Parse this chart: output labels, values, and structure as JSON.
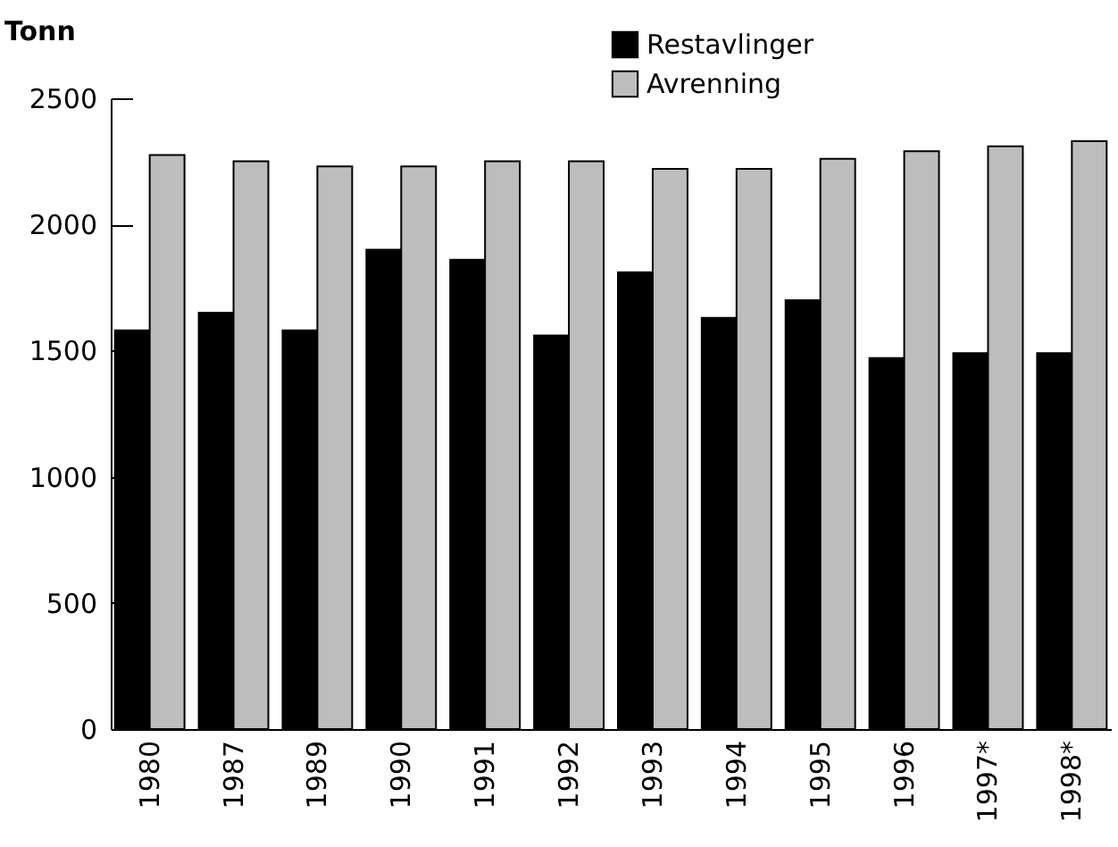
{
  "chart_data": {
    "type": "bar",
    "ylabel": "Tonn",
    "categories": [
      "1980",
      "1987",
      "1989",
      "1990",
      "1991",
      "1992",
      "1993",
      "1994",
      "1995",
      "1996",
      "1997*",
      "1998*"
    ],
    "series": [
      {
        "name": "Restavlinger",
        "color": "#000000",
        "values": [
          1580,
          1650,
          1580,
          1900,
          1860,
          1560,
          1810,
          1630,
          1700,
          1470,
          1490,
          1490
        ]
      },
      {
        "name": "Avrenning",
        "color": "#bdbdbd",
        "values": [
          2275,
          2250,
          2230,
          2230,
          2250,
          2250,
          2220,
          2220,
          2260,
          2290,
          2310,
          2330
        ]
      }
    ],
    "ylim": [
      0,
      2500
    ],
    "yticks": [
      0,
      500,
      1000,
      1500,
      2000,
      2500
    ],
    "legend": "top right"
  }
}
